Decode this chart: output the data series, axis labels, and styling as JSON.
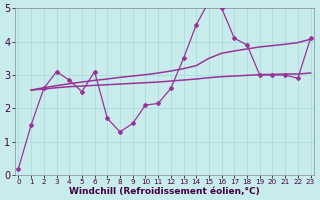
{
  "bg_color": "#c8ecec",
  "grid_color": "#aadddd",
  "line_color": "#993399",
  "xlabel": "Windchill (Refroidissement éolien,°C)",
  "x_min": 0,
  "x_max": 23,
  "y_min": 0,
  "y_max": 5,
  "line1_x": [
    0,
    1,
    2,
    3,
    4,
    5,
    6,
    7,
    8,
    9,
    10,
    11,
    12,
    13,
    14,
    15,
    16,
    17,
    18,
    19,
    20,
    21,
    22,
    23
  ],
  "line1_y": [
    0.2,
    1.5,
    2.6,
    3.1,
    2.85,
    2.5,
    3.1,
    1.7,
    1.3,
    1.55,
    2.1,
    2.15,
    2.6,
    3.5,
    4.5,
    5.2,
    5.0,
    4.1,
    3.9,
    3.0,
    3.0,
    3.0,
    2.9,
    4.1
  ],
  "line2_x": [
    1,
    2,
    3,
    4,
    5,
    6,
    7,
    8,
    9,
    10,
    11,
    12,
    13,
    14,
    15,
    16,
    17,
    18,
    19,
    20,
    21,
    22,
    23
  ],
  "line2_y": [
    2.55,
    2.62,
    2.68,
    2.74,
    2.79,
    2.84,
    2.88,
    2.93,
    2.97,
    3.01,
    3.06,
    3.12,
    3.19,
    3.28,
    3.5,
    3.65,
    3.72,
    3.78,
    3.84,
    3.88,
    3.92,
    3.97,
    4.07
  ],
  "line3_x": [
    1,
    2,
    3,
    4,
    5,
    6,
    7,
    8,
    9,
    10,
    11,
    12,
    13,
    14,
    15,
    16,
    17,
    18,
    19,
    20,
    21,
    22,
    23
  ],
  "line3_y": [
    2.55,
    2.58,
    2.62,
    2.65,
    2.67,
    2.69,
    2.71,
    2.73,
    2.75,
    2.77,
    2.79,
    2.82,
    2.85,
    2.88,
    2.92,
    2.95,
    2.97,
    2.99,
    3.01,
    3.02,
    3.03,
    3.03,
    3.06
  ],
  "yticks": [
    0,
    1,
    2,
    3,
    4,
    5
  ],
  "xticks": [
    0,
    1,
    2,
    3,
    4,
    5,
    6,
    7,
    8,
    9,
    10,
    11,
    12,
    13,
    14,
    15,
    16,
    17,
    18,
    19,
    20,
    21,
    22,
    23
  ]
}
